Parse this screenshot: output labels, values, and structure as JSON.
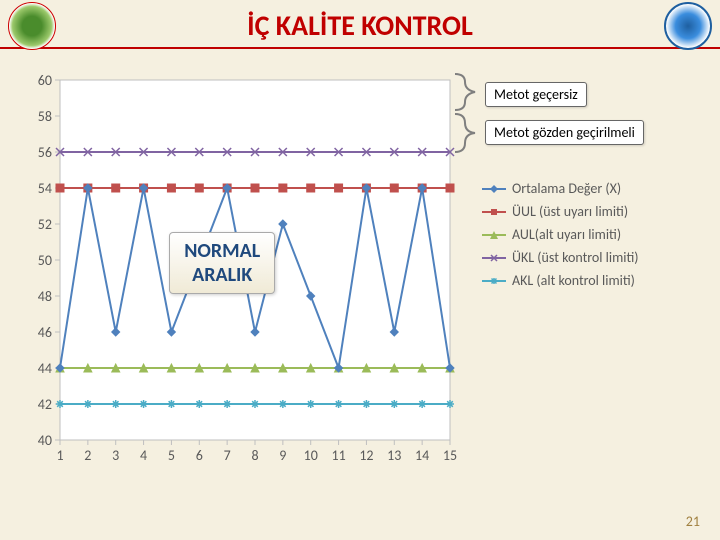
{
  "title": "İÇ KALİTE KONTROL",
  "page_number": "21",
  "chart": {
    "type": "line",
    "x_values": [
      1,
      2,
      3,
      4,
      5,
      6,
      7,
      8,
      9,
      10,
      11,
      12,
      13,
      14,
      15
    ],
    "y_min": 40,
    "y_max": 60,
    "y_tick_step": 2,
    "y_ticks": [
      40,
      42,
      44,
      46,
      48,
      50,
      52,
      54,
      56,
      58,
      60
    ],
    "plot_bg": "#ffffff",
    "grid_color": "#bfbfbf",
    "series": {
      "ortalama": {
        "label": "Ortalama Değer (X)",
        "color": "#4f81bd",
        "marker": "diamond",
        "values": [
          44,
          54,
          46,
          54,
          46,
          50,
          54,
          46,
          52,
          48,
          44,
          54,
          46,
          54,
          44
        ]
      },
      "uul": {
        "label": "ÜUL (üst uyarı limiti)",
        "color": "#c0504d",
        "marker": "square",
        "value": 54
      },
      "aul": {
        "label": "AUL(alt uyarı limiti)",
        "color": "#9bbb59",
        "marker": "triangle",
        "value": 44
      },
      "ukl": {
        "label": "ÜKL (üst kontrol limiti)",
        "color": "#8064a2",
        "marker": "x",
        "value": 56
      },
      "akl": {
        "label": "AKL (alt kontrol limiti)",
        "color": "#4bacc6",
        "marker": "asterisk",
        "value": 42
      }
    },
    "center_label_line1": "NORMAL",
    "center_label_line2": "ARALIK"
  },
  "annotations": {
    "gecersiz": "Metot geçersiz",
    "gozden": "Metot gözden geçirilmeli"
  },
  "legend_order": [
    "ortalama",
    "uul",
    "aul",
    "ukl",
    "akl"
  ]
}
